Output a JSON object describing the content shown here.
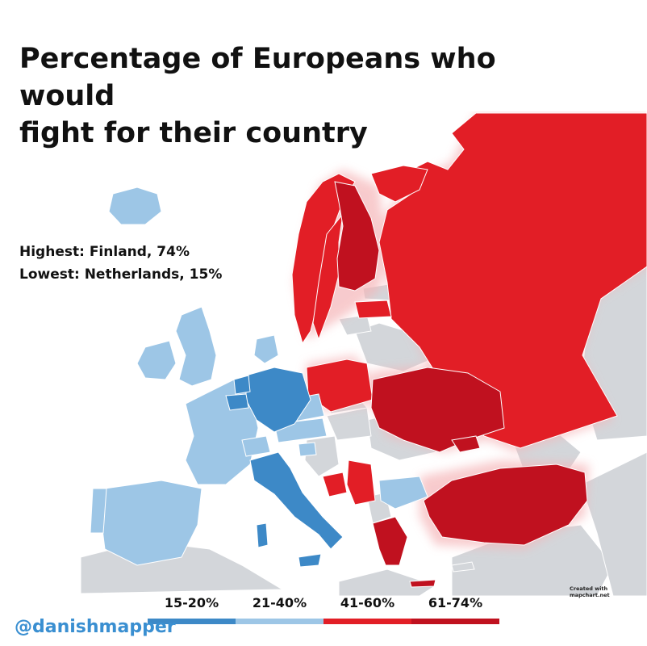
{
  "title_line1": "Percentage of Europeans who would",
  "title_line2": "fight for their country",
  "stats": {
    "highest": "Highest: Finland, 74%",
    "lowest": "Lowest: Netherlands, 15%"
  },
  "credit": "Created with mapchart.net",
  "handle": "@danishmapper",
  "legend": [
    {
      "label": "15-20%",
      "color": "#3d89c7"
    },
    {
      "label": "21-40%",
      "color": "#9dc6e6"
    },
    {
      "label": "41-60%",
      "color": "#e21e26"
    },
    {
      "label": "61-74%",
      "color": "#c0111f"
    }
  ],
  "colors": {
    "sea": "#ffffff",
    "no_data": "#d3d6da",
    "band_15_20": "#3d89c7",
    "band_21_40": "#9dc6e6",
    "band_41_60": "#e21e26",
    "band_61_74": "#c0111f",
    "glow": "#f5b5b8"
  },
  "countries": [
    {
      "name": "Iceland",
      "band": "21-40%"
    },
    {
      "name": "United Kingdom",
      "band": "21-40%"
    },
    {
      "name": "Ireland",
      "band": "21-40%"
    },
    {
      "name": "France",
      "band": "21-40%"
    },
    {
      "name": "Spain",
      "band": "21-40%"
    },
    {
      "name": "Portugal",
      "band": "21-40%"
    },
    {
      "name": "Denmark",
      "band": "21-40%"
    },
    {
      "name": "Austria",
      "band": "21-40%"
    },
    {
      "name": "Czech Republic",
      "band": "21-40%"
    },
    {
      "name": "Bulgaria",
      "band": "21-40%"
    },
    {
      "name": "Switzerland",
      "band": "21-40%"
    },
    {
      "name": "Slovenia",
      "band": "21-40%"
    },
    {
      "name": "Germany",
      "band": "15-20%"
    },
    {
      "name": "Netherlands",
      "band": "15-20%"
    },
    {
      "name": "Belgium",
      "band": "15-20%"
    },
    {
      "name": "Italy",
      "band": "15-20%"
    },
    {
      "name": "Norway",
      "band": "41-60%"
    },
    {
      "name": "Sweden",
      "band": "41-60%"
    },
    {
      "name": "Poland",
      "band": "41-60%"
    },
    {
      "name": "Russia",
      "band": "41-60%"
    },
    {
      "name": "Latvia",
      "band": "41-60%"
    },
    {
      "name": "Bosnia",
      "band": "41-60%"
    },
    {
      "name": "Serbia",
      "band": "41-60%"
    },
    {
      "name": "Finland",
      "band": "61-74%"
    },
    {
      "name": "Ukraine",
      "band": "61-74%"
    },
    {
      "name": "Greece",
      "band": "61-74%"
    },
    {
      "name": "Turkey",
      "band": "61-74%"
    }
  ]
}
